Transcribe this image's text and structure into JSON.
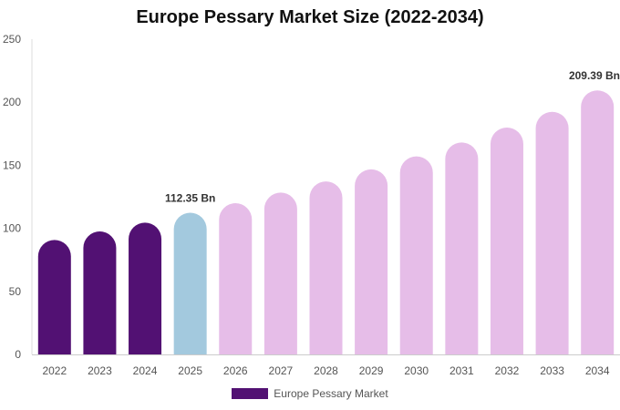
{
  "chart_data": {
    "type": "bar",
    "title": "Europe Pessary Market Size (2022-2034)",
    "xlabel": "",
    "ylabel": "",
    "categories": [
      "2022",
      "2023",
      "2024",
      "2025",
      "2026",
      "2027",
      "2028",
      "2029",
      "2030",
      "2031",
      "2032",
      "2033",
      "2034"
    ],
    "series": [
      {
        "name": "Europe Pessary Market",
        "values": [
          90.8,
          97.5,
          104.5,
          112.35,
          119.9,
          128.3,
          137.2,
          146.8,
          157.1,
          168.1,
          179.9,
          192.4,
          209.39
        ]
      }
    ],
    "data_labels": [
      {
        "index": 3,
        "text": "112.35 Bn"
      },
      {
        "index": 12,
        "text": "209.39 Bn"
      }
    ],
    "ylim": [
      0,
      250
    ],
    "yticks": [
      0,
      50,
      100,
      150,
      200,
      250
    ],
    "colors": {
      "historical": "#521173",
      "current": "#a3c9de",
      "forecast": "#e6bde8",
      "legend": "#521173"
    },
    "bar_color_groups": [
      "historical",
      "historical",
      "historical",
      "current",
      "forecast",
      "forecast",
      "forecast",
      "forecast",
      "forecast",
      "forecast",
      "forecast",
      "forecast",
      "forecast"
    ],
    "legend_position": "bottom-center",
    "grid": false
  }
}
